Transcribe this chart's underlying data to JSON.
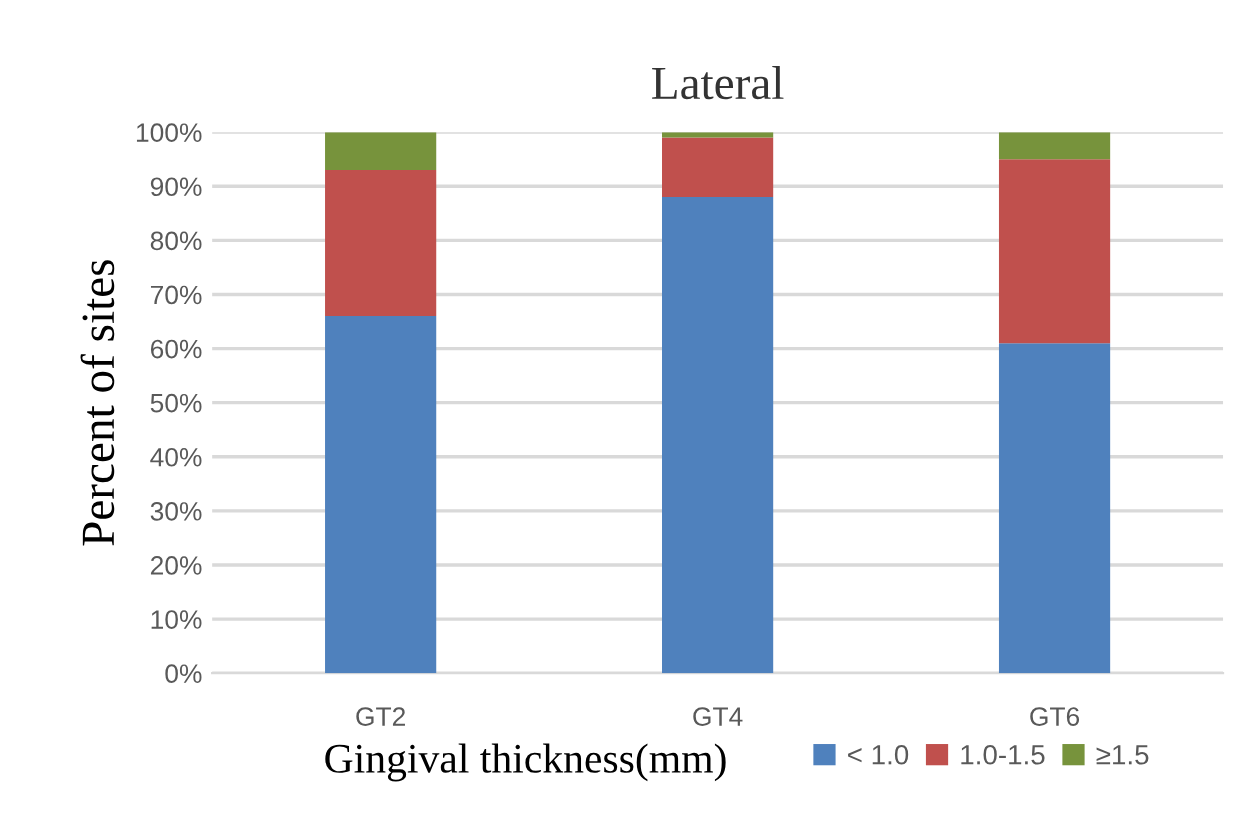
{
  "chart_data": {
    "type": "bar",
    "stacked": true,
    "title": "Lateral",
    "ylabel": "Percent of sites",
    "xlabel": "Gingival thickness(mm)",
    "categories": [
      "GT2",
      "GT4",
      "GT6"
    ],
    "series": [
      {
        "name": "< 1.0",
        "color": "#4f81bd",
        "values": [
          66,
          88,
          61
        ]
      },
      {
        "name": "1.0-1.5",
        "color": "#c0504d",
        "values": [
          27,
          11,
          34
        ]
      },
      {
        "name": "≥1.5",
        "color": "#77933c",
        "values": [
          7,
          1,
          5
        ]
      }
    ],
    "ylim": [
      0,
      100
    ],
    "yticks": [
      {
        "value": 0,
        "label": "0%"
      },
      {
        "value": 10,
        "label": "10%"
      },
      {
        "value": 20,
        "label": "20%"
      },
      {
        "value": 30,
        "label": "30%"
      },
      {
        "value": 40,
        "label": "40%"
      },
      {
        "value": 50,
        "label": "50%"
      },
      {
        "value": 60,
        "label": "60%"
      },
      {
        "value": 70,
        "label": "70%"
      },
      {
        "value": 80,
        "label": "80%"
      },
      {
        "value": 90,
        "label": "90%"
      },
      {
        "value": 100,
        "label": "100%"
      }
    ],
    "grid": "y",
    "legend": "bottom"
  }
}
